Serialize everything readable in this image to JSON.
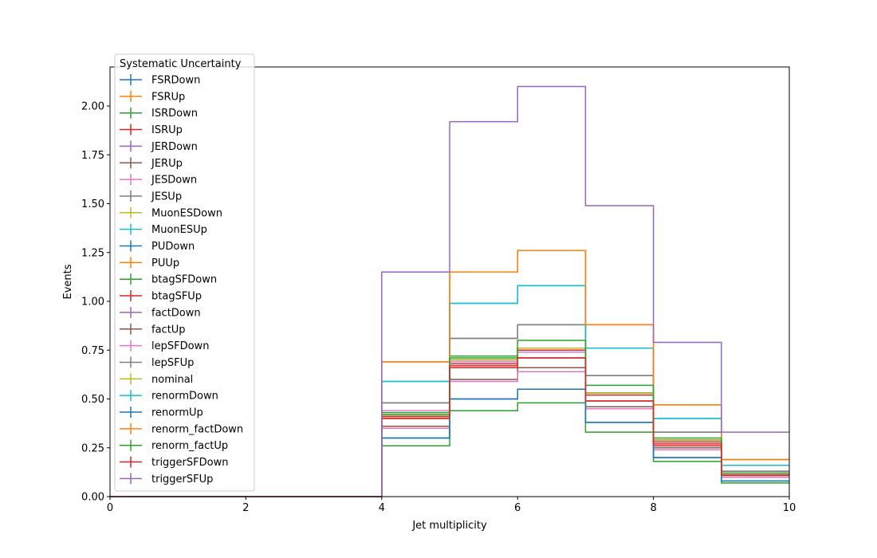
{
  "chart_data": {
    "type": "line",
    "step": "post",
    "xlabel": "Jet multiplicity",
    "ylabel": "Events",
    "xlim": [
      0,
      10
    ],
    "ylim": [
      0,
      2.2
    ],
    "grid": false,
    "legend_title": "Systematic Uncertainty",
    "legend_position": "upper-left",
    "x_ticks": [
      "0",
      "2",
      "4",
      "6",
      "8",
      "10"
    ],
    "y_ticks": [
      "0.00",
      "0.25",
      "0.50",
      "0.75",
      "1.00",
      "1.25",
      "1.50",
      "1.75",
      "2.00"
    ],
    "bin_edges": [
      0,
      1,
      2,
      3,
      4,
      5,
      6,
      7,
      8,
      9,
      10
    ],
    "series": [
      {
        "name": "FSRDown",
        "color": "#1f77b4",
        "values": [
          0,
          0,
          0,
          0,
          0.41,
          0.7,
          0.76,
          0.53,
          0.29,
          0.12
        ]
      },
      {
        "name": "FSRUp",
        "color": "#ff7f0e",
        "values": [
          0,
          0,
          0,
          0,
          0.42,
          0.7,
          0.76,
          0.53,
          0.29,
          0.12
        ]
      },
      {
        "name": "ISRDown",
        "color": "#2ca02c",
        "values": [
          0,
          0,
          0,
          0,
          0.42,
          0.72,
          0.76,
          0.53,
          0.29,
          0.12
        ]
      },
      {
        "name": "ISRUp",
        "color": "#d62728",
        "values": [
          0,
          0,
          0,
          0,
          0.4,
          0.68,
          0.75,
          0.52,
          0.28,
          0.11
        ]
      },
      {
        "name": "JERDown",
        "color": "#9467bd",
        "values": [
          0,
          0,
          0,
          0,
          0.41,
          0.7,
          0.76,
          0.53,
          0.29,
          0.12
        ]
      },
      {
        "name": "JERUp",
        "color": "#8c564b",
        "values": [
          0,
          0,
          0,
          0,
          0.41,
          0.7,
          0.76,
          0.53,
          0.29,
          0.12
        ]
      },
      {
        "name": "JESDown",
        "color": "#e377c2",
        "values": [
          0,
          0,
          0,
          0,
          0.44,
          0.69,
          0.74,
          0.46,
          0.25,
          0.1
        ]
      },
      {
        "name": "JESUp",
        "color": "#7f7f7f",
        "values": [
          0,
          0,
          0,
          0,
          0.48,
          0.81,
          0.88,
          0.62,
          0.33,
          0.13
        ]
      },
      {
        "name": "MuonESDown",
        "color": "#bcbd22",
        "values": [
          0,
          0,
          0,
          0,
          0.41,
          0.7,
          0.76,
          0.53,
          0.29,
          0.12
        ]
      },
      {
        "name": "MuonESUp",
        "color": "#17becf",
        "values": [
          0,
          0,
          0,
          0,
          0.59,
          0.99,
          1.08,
          0.76,
          0.4,
          0.16
        ]
      },
      {
        "name": "PUDown",
        "color": "#1f77b4",
        "values": [
          0,
          0,
          0,
          0,
          0.3,
          0.5,
          0.55,
          0.38,
          0.2,
          0.08
        ]
      },
      {
        "name": "PUUp",
        "color": "#ff7f0e",
        "values": [
          0,
          0,
          0,
          0,
          0.69,
          1.15,
          1.26,
          0.88,
          0.47,
          0.19
        ]
      },
      {
        "name": "btagSFDown",
        "color": "#2ca02c",
        "values": [
          0,
          0,
          0,
          0,
          0.26,
          0.44,
          0.48,
          0.33,
          0.18,
          0.07
        ]
      },
      {
        "name": "btagSFUp",
        "color": "#d62728",
        "values": [
          0,
          0,
          0,
          0,
          0.4,
          0.66,
          0.71,
          0.49,
          0.26,
          0.11
        ]
      },
      {
        "name": "factDown",
        "color": "#9467bd",
        "values": [
          0,
          0,
          0,
          0,
          0.41,
          0.7,
          0.76,
          0.53,
          0.29,
          0.12
        ]
      },
      {
        "name": "factUp",
        "color": "#8c564b",
        "values": [
          0,
          0,
          0,
          0,
          0.36,
          0.6,
          0.66,
          0.46,
          0.25,
          0.1
        ]
      },
      {
        "name": "lepSFDown",
        "color": "#e377c2",
        "values": [
          0,
          0,
          0,
          0,
          0.35,
          0.59,
          0.64,
          0.45,
          0.24,
          0.1
        ]
      },
      {
        "name": "lepSFUp",
        "color": "#7f7f7f",
        "values": [
          0,
          0,
          0,
          0,
          0.48,
          0.81,
          0.88,
          0.62,
          0.33,
          0.13
        ]
      },
      {
        "name": "nominal",
        "color": "#bcbd22",
        "values": [
          0,
          0,
          0,
          0,
          0.41,
          0.7,
          0.76,
          0.53,
          0.29,
          0.12
        ]
      },
      {
        "name": "renormDown",
        "color": "#17becf",
        "values": [
          0,
          0,
          0,
          0,
          0.59,
          0.99,
          1.08,
          0.76,
          0.4,
          0.16
        ]
      },
      {
        "name": "renormUp",
        "color": "#1f77b4",
        "values": [
          0,
          0,
          0,
          0,
          0.3,
          0.5,
          0.55,
          0.38,
          0.2,
          0.08
        ]
      },
      {
        "name": "renorm_factDown",
        "color": "#ff7f0e",
        "values": [
          0,
          0,
          0,
          0,
          0.69,
          1.15,
          1.26,
          0.88,
          0.47,
          0.19
        ]
      },
      {
        "name": "renorm_factUp",
        "color": "#2ca02c",
        "values": [
          0,
          0,
          0,
          0,
          0.43,
          0.71,
          0.8,
          0.57,
          0.3,
          0.12
        ]
      },
      {
        "name": "triggerSFDown",
        "color": "#d62728",
        "values": [
          0,
          0,
          0,
          0,
          0.41,
          0.67,
          0.71,
          0.49,
          0.27,
          0.11
        ]
      },
      {
        "name": "triggerSFUp",
        "color": "#9467bd",
        "values": [
          0,
          0,
          0,
          0,
          1.15,
          1.92,
          2.1,
          1.49,
          0.79,
          0.33
        ]
      }
    ]
  }
}
